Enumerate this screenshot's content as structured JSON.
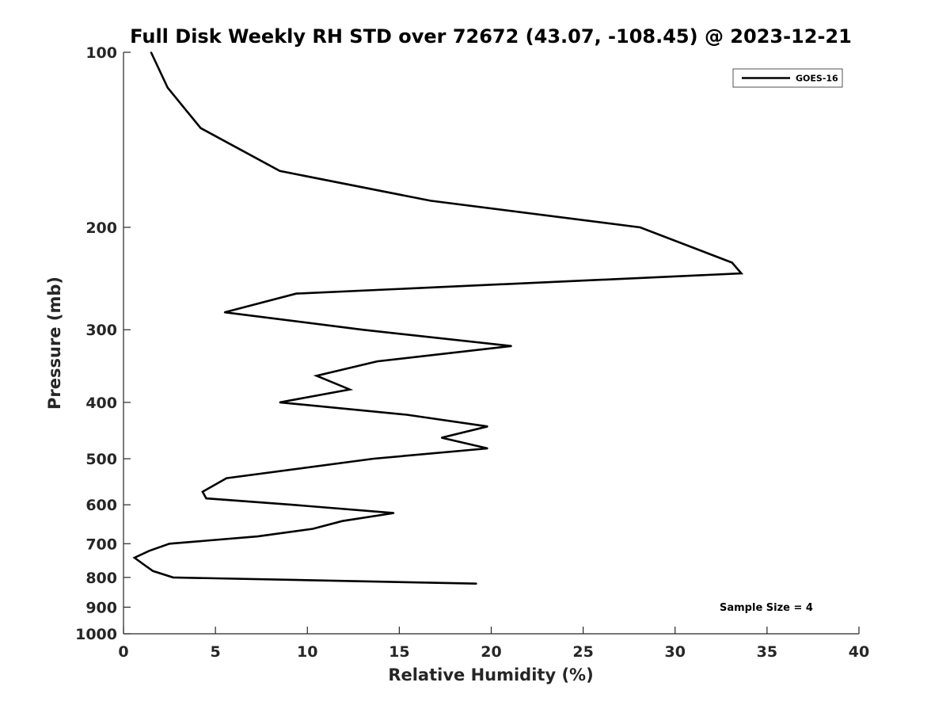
{
  "chart_data": {
    "type": "line",
    "title": "Full Disk Weekly RH STD over 72672 (43.07, -108.45) @ 2023-12-21",
    "xlabel": "Relative Humidity (%)",
    "ylabel": "Pressure (mb)",
    "xlim": [
      0,
      40
    ],
    "ylim": [
      100,
      1000
    ],
    "y_scale": "log",
    "y_reversed": true,
    "x_ticks": [
      "0",
      "5",
      "10",
      "15",
      "20",
      "25",
      "30",
      "35",
      "40"
    ],
    "y_ticks": [
      "100",
      "200",
      "300",
      "400",
      "500",
      "600",
      "700",
      "800",
      "900",
      "1000"
    ],
    "grid": false,
    "legend_position": "top-right",
    "annotation": "Sample Size = 4",
    "series": [
      {
        "name": "GOES-16",
        "color": "#000000",
        "points": [
          {
            "x": 1.5,
            "y": 100
          },
          {
            "x": 2.4,
            "y": 115
          },
          {
            "x": 4.2,
            "y": 135
          },
          {
            "x": 8.5,
            "y": 160
          },
          {
            "x": 16.7,
            "y": 180
          },
          {
            "x": 28.1,
            "y": 200
          },
          {
            "x": 33.1,
            "y": 230
          },
          {
            "x": 33.6,
            "y": 240
          },
          {
            "x": 9.4,
            "y": 260
          },
          {
            "x": 5.5,
            "y": 280
          },
          {
            "x": 13.0,
            "y": 300
          },
          {
            "x": 21.1,
            "y": 320
          },
          {
            "x": 13.8,
            "y": 340
          },
          {
            "x": 10.5,
            "y": 360
          },
          {
            "x": 12.3,
            "y": 380
          },
          {
            "x": 8.5,
            "y": 400
          },
          {
            "x": 15.4,
            "y": 420
          },
          {
            "x": 19.8,
            "y": 440
          },
          {
            "x": 17.3,
            "y": 460
          },
          {
            "x": 19.8,
            "y": 480
          },
          {
            "x": 13.6,
            "y": 500
          },
          {
            "x": 5.6,
            "y": 540
          },
          {
            "x": 4.3,
            "y": 570
          },
          {
            "x": 4.5,
            "y": 585
          },
          {
            "x": 9.2,
            "y": 600
          },
          {
            "x": 14.7,
            "y": 620
          },
          {
            "x": 11.9,
            "y": 640
          },
          {
            "x": 10.3,
            "y": 660
          },
          {
            "x": 7.3,
            "y": 680
          },
          {
            "x": 2.5,
            "y": 700
          },
          {
            "x": 1.4,
            "y": 720
          },
          {
            "x": 0.6,
            "y": 740
          },
          {
            "x": 1.1,
            "y": 760
          },
          {
            "x": 1.6,
            "y": 780
          },
          {
            "x": 2.7,
            "y": 800
          },
          {
            "x": 19.2,
            "y": 820
          }
        ]
      }
    ]
  }
}
